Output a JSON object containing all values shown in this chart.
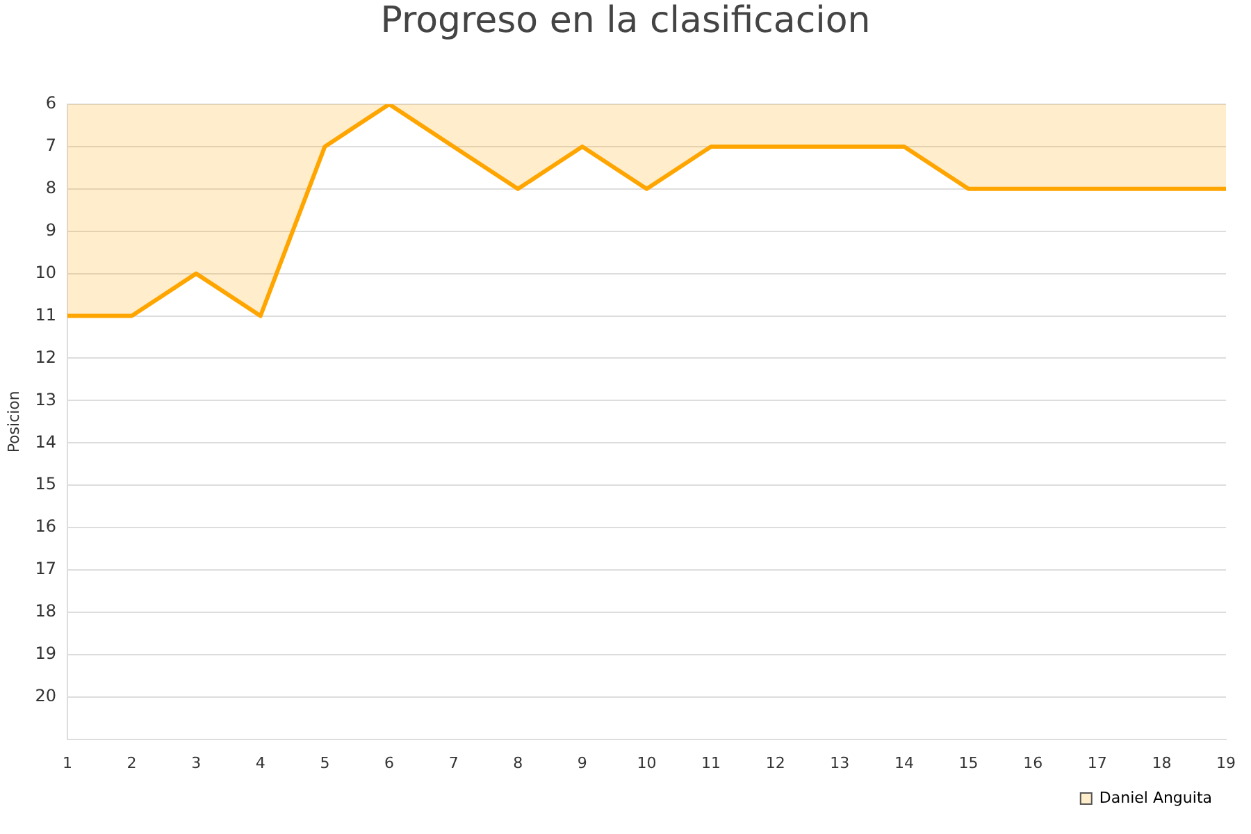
{
  "chart_data": {
    "type": "area",
    "title": "Progreso en la clasificacion",
    "ylabel": "Posicion",
    "x": [
      1,
      2,
      3,
      4,
      5,
      6,
      7,
      8,
      9,
      10,
      11,
      12,
      13,
      14,
      15,
      16,
      17,
      18,
      19
    ],
    "series": [
      {
        "name": "Daniel Anguita",
        "color": "#ffa500",
        "values": [
          11,
          11,
          10,
          11,
          7,
          6,
          7,
          8,
          7,
          8,
          7,
          7,
          7,
          7,
          8,
          8,
          8,
          8,
          8
        ]
      }
    ],
    "xlim": [
      1,
      19
    ],
    "xticks": [
      1,
      2,
      3,
      4,
      5,
      6,
      7,
      8,
      9,
      10,
      11,
      12,
      13,
      14,
      15,
      16,
      17,
      18,
      19
    ],
    "ylim": [
      21,
      6
    ],
    "yticks": [
      6,
      7,
      8,
      9,
      10,
      11,
      12,
      13,
      14,
      15,
      16,
      17,
      18,
      19,
      20
    ],
    "grid": "y",
    "legend": "bottom right",
    "marker": "none",
    "line_style": "solid"
  }
}
